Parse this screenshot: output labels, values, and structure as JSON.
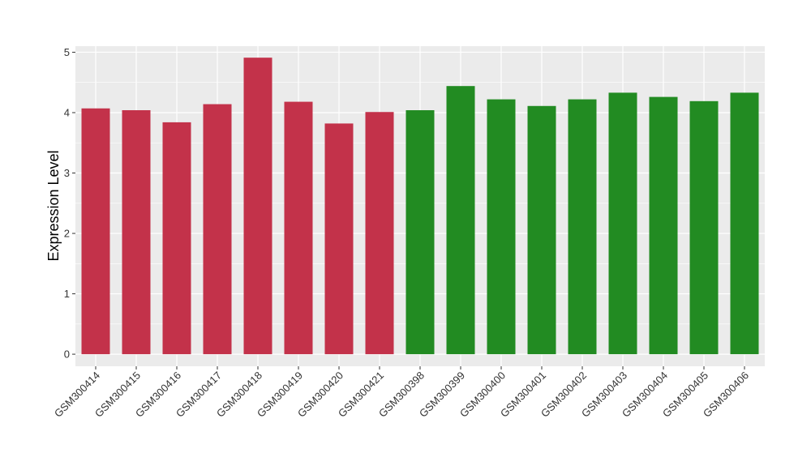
{
  "chart_data": {
    "type": "bar",
    "ylabel": "Expression Level",
    "xlabel": "",
    "ylim": [
      -0.2,
      5.1
    ],
    "yticks": [
      0,
      1,
      2,
      3,
      4,
      5
    ],
    "grid": true,
    "categories": [
      "GSM300414",
      "GSM300415",
      "GSM300416",
      "GSM300417",
      "GSM300418",
      "GSM300419",
      "GSM300420",
      "GSM300421",
      "GSM300398",
      "GSM300399",
      "GSM300400",
      "GSM300401",
      "GSM300402",
      "GSM300403",
      "GSM300404",
      "GSM300405",
      "GSM300406"
    ],
    "values": [
      4.07,
      4.04,
      3.84,
      4.14,
      4.91,
      4.18,
      3.82,
      4.01,
      4.04,
      4.44,
      4.22,
      4.11,
      4.22,
      4.33,
      4.26,
      4.19,
      4.33
    ],
    "colors": [
      "#c3324a",
      "#c3324a",
      "#c3324a",
      "#c3324a",
      "#c3324a",
      "#c3324a",
      "#c3324a",
      "#c3324a",
      "#228b22",
      "#228b22",
      "#228b22",
      "#228b22",
      "#228b22",
      "#228b22",
      "#228b22",
      "#228b22",
      "#228b22"
    ],
    "panel_color": "#ebebeb",
    "grid_color": "#ffffff"
  }
}
